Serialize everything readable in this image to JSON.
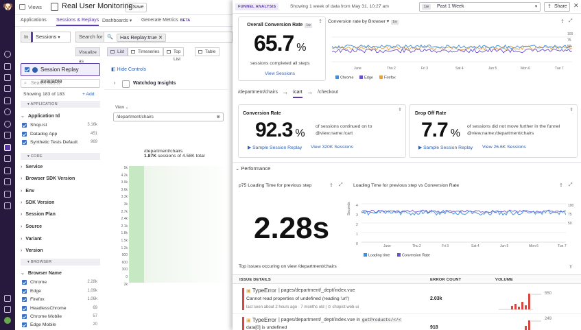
{
  "topbar": {
    "views_label": "Views",
    "app_title": "Real User Monitoring",
    "save_label": "Save"
  },
  "tabs": [
    {
      "label": "Applications"
    },
    {
      "label": "Sessions & Replays"
    },
    {
      "label": "Dashboards",
      "suffix": "▾"
    },
    {
      "label": "Generate Metrics",
      "badge": "BETA"
    }
  ],
  "query": {
    "in_label": "In",
    "source": "Sessions",
    "search_for": "Search for",
    "filter_pill": "Has Replay:true"
  },
  "visualize": {
    "label": "Visualize as",
    "options": [
      "List",
      "Timeseries",
      "Top List",
      "Table"
    ]
  },
  "facets": {
    "replay_toggle": "Session Replay available",
    "search_placeholder": "Search facets",
    "showing": "Showing 183 of 183",
    "add": "Add",
    "sections": [
      "APPLICATION",
      "CORE",
      "BROWSER"
    ],
    "app_group": "Application Id",
    "app_values": [
      {
        "name": "Shop.ist",
        "count": "3.16k"
      },
      {
        "name": "Datadog App",
        "count": "451"
      },
      {
        "name": "Synthetic Tests Default",
        "count": "969"
      }
    ],
    "core_groups": [
      "Service",
      "Browser SDK Version",
      "Env",
      "SDK Version",
      "Session Plan",
      "Source",
      "Variant",
      "Version"
    ],
    "browser_group": "Browser Name",
    "browser_values": [
      {
        "name": "Chrome",
        "count": "2.28k"
      },
      {
        "name": "Edge",
        "count": "1.09k"
      },
      {
        "name": "Firefox",
        "count": "1.06k"
      },
      {
        "name": "HeadlessChrome",
        "count": "69"
      },
      {
        "name": "Chrome Mobile",
        "count": "57"
      },
      {
        "name": "Edge Mobile",
        "count": "20"
      }
    ]
  },
  "funnel": {
    "hide_controls": "Hide Controls",
    "watchdog": "Watchdog Insights",
    "view_label": "View",
    "view_value": "/department/chairs",
    "step_path": "/department/chairs",
    "step_count": "1.87K",
    "step_text": "sessions of 4.58K total",
    "y_ticks": [
      "5k",
      "4.2k",
      "3.9k",
      "3.6k",
      "3.3k",
      "3k",
      "2.7k",
      "2.4k",
      "2.1k",
      "1.8k",
      "1.5k",
      "1.2k",
      "900",
      "600",
      "300",
      "0",
      "2k"
    ]
  },
  "panel": {
    "badge": "FUNNEL ANALYSIS",
    "showing": "Showing 1 week of data from May 31, 10:27 am",
    "time_badge": "1w",
    "time_label": "Past 1 Week",
    "share": "Share",
    "overall": {
      "title": "Overall Conversion Rate",
      "badge": "1w",
      "value": "65.7",
      "unit": "%",
      "sub": "sessions completed all steps",
      "link": "View Sessions"
    },
    "browser_chart": {
      "title": "Conversion rate by Browser",
      "badge": "1w",
      "x_labels": [
        "June",
        "Thu 2",
        "Fri 3",
        "Sat 4",
        "Jun 5",
        "Mon 6",
        "Tue 7"
      ],
      "y_labels": [
        "100",
        "75",
        "50"
      ],
      "legend": [
        "Chrome",
        "Edge",
        "Firefox"
      ],
      "colors": [
        "#3d8fe0",
        "#6a4fd0",
        "#e8a13a"
      ]
    },
    "breadcrumb": [
      "/department/chairs",
      "/cart",
      "/checkout"
    ],
    "conversion": {
      "title": "Conversion Rate",
      "value": "92.3",
      "unit": "%",
      "desc1": "of sessions continued on to",
      "desc2": "@view.name:/cart",
      "replay": "Sample Session Replay",
      "view": "View 320K Sessions"
    },
    "dropoff": {
      "title": "Drop Off Rate",
      "value": "7.7",
      "unit": "%",
      "desc1": "of sessions did not move further in the funnel",
      "desc2": "@view.name:/department/chairs",
      "replay": "Sample Session Replay",
      "view": "View 26.6K Sessions"
    },
    "performance": {
      "label": "Performance",
      "p75_title": "p75 Loading Time for previous step",
      "p75_value": "2.28s",
      "lt_title": "Loading Time for previous step vs Conversion Rate",
      "lt_ylabel": "Seconds",
      "lt_y_left": [
        "4",
        "3",
        "2",
        "1",
        "0"
      ],
      "lt_y_right": [
        "100",
        "75",
        "50"
      ],
      "lt_x": [
        "June",
        "Thu 2",
        "Fri 3",
        "Sat 4",
        "Jun 5",
        "Mon 6",
        "Tue 7"
      ],
      "legend": [
        "Loading time",
        "Conversion Rate"
      ]
    },
    "issues": {
      "title": "Top issues occuring on view /department/chairs",
      "headers": [
        "ISSUE DETAILS",
        "ERROR COUNT",
        "VOLUME"
      ],
      "rows": [
        {
          "type": "TypeError",
          "path": "pages/department/_dept/index.vue",
          "message": "Cannot read properties of undefined (reading 'url')",
          "meta": "last seen about 2 hours ago · 7 months old",
          "service": "shopist-web-ui",
          "count": "2.03k",
          "peak": "550"
        },
        {
          "type": "TypeError",
          "path": "pages/department/_dept/index.vue in",
          "code": "getProducts/</<",
          "message": "data[0] is undefined",
          "meta": "",
          "service": "",
          "count": "918",
          "peak": "249"
        }
      ]
    }
  }
}
